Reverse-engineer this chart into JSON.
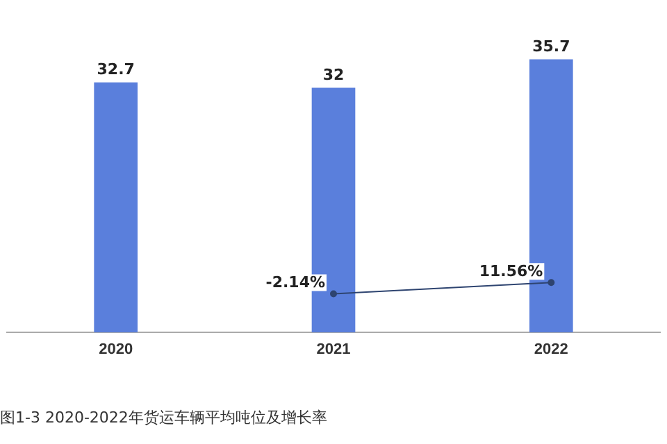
{
  "chart_data": {
    "type": "bar",
    "title": "图1-3 2020-2022年货运车辆平均吨位及增长率",
    "categories": [
      "2020",
      "2021",
      "2022"
    ],
    "series": [
      {
        "color": "#5a7fdc",
        "values": [
          32.7,
          32,
          35.7
        ]
      },
      {
        "type": "line",
        "axis": "y2",
        "color": "#2e4470",
        "values": [
          null,
          -2.14,
          11.56
        ],
        "value_labels": [
          null,
          "-2.14%",
          "11.56%"
        ]
      }
    ],
    "tick_labels": "x",
    "grid": false,
    "legend": false,
    "marker": "circle",
    "data_labels": true
  }
}
